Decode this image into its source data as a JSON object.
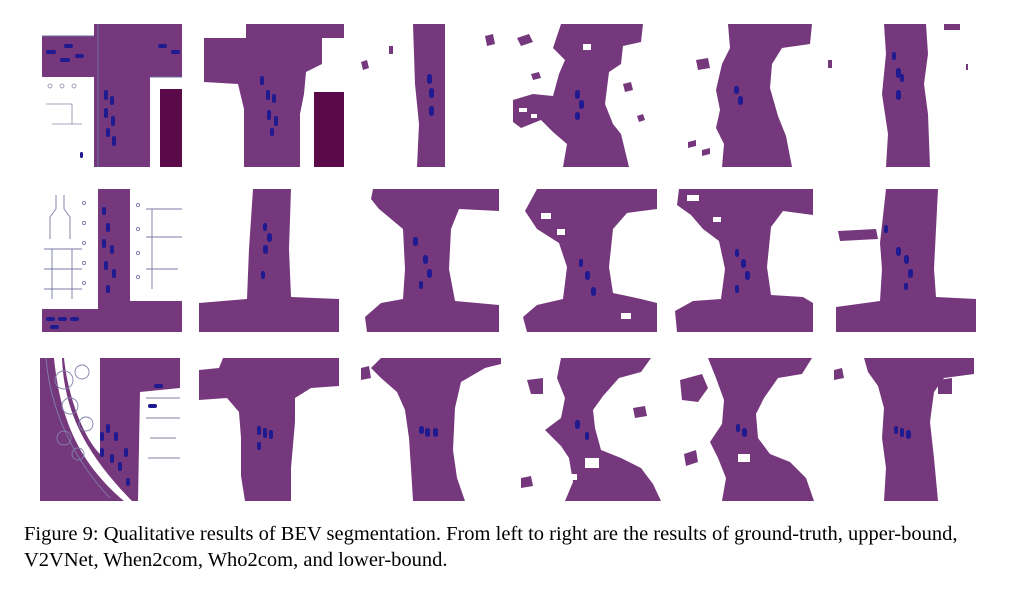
{
  "figure": {
    "columns": [
      "ground-truth",
      "upper-bound",
      "V2VNet",
      "When2com",
      "Who2com",
      "lower-bound"
    ],
    "rows": 3,
    "colors": {
      "road": "#76387d",
      "vehicle": "#1f1a8f",
      "background": "#ffffff",
      "building": "#5a0a48",
      "lane-outline": "#6b6b9a"
    }
  },
  "caption": {
    "text": "Figure 9: Qualitative results of BEV segmentation. From left to right are the results of ground-truth, upper-bound, V2VNet, When2com, Who2com, and lower-bound."
  }
}
